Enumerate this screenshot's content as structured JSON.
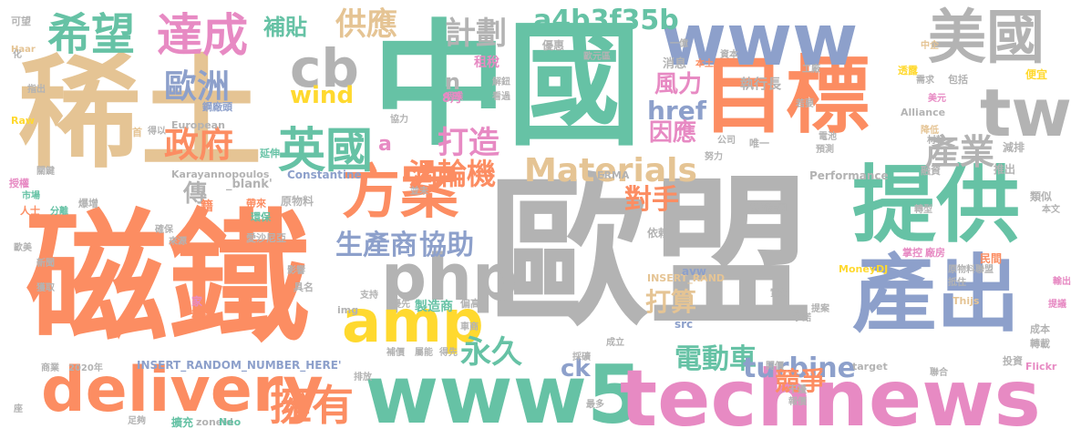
{
  "words": [
    {
      "text": "歐盟",
      "color": "#b3b3b3"
    },
    {
      "text": "磁鐵",
      "color": "#fc8d62"
    },
    {
      "text": "稀土",
      "color": "#e5c494"
    },
    {
      "text": "中國",
      "color": "#66c2a5"
    },
    {
      "text": "目標",
      "color": "#fc8d62"
    },
    {
      "text": "www5",
      "color": "#66c2a5"
    },
    {
      "text": "technews",
      "color": "#e78ac3"
    },
    {
      "text": "www",
      "color": "#8da0cb"
    },
    {
      "text": "提供",
      "color": "#66c2a5"
    },
    {
      "text": "產出",
      "color": "#8da0cb"
    },
    {
      "text": "tw",
      "color": "#b3b3b3"
    },
    {
      "text": "美國",
      "color": "#b3b3b3"
    },
    {
      "text": "delivery",
      "color": "#fc8d62"
    },
    {
      "text": "php",
      "color": "#b3b3b3"
    },
    {
      "text": "amp",
      "color": "#ffd92f"
    },
    {
      "text": "cb",
      "color": "#b3b3b3"
    },
    {
      "text": "方案",
      "color": "#fc8d62"
    },
    {
      "text": "希望",
      "color": "#66c2a5"
    },
    {
      "text": "達成",
      "color": "#e78ac3"
    },
    {
      "text": "英國",
      "color": "#66c2a5"
    },
    {
      "text": "擁有",
      "color": "#fc8d62"
    },
    {
      "text": "政府",
      "color": "#fc8d62"
    },
    {
      "text": "歐洲",
      "color": "#8da0cb"
    },
    {
      "text": "Materials",
      "color": "#e5c494"
    },
    {
      "text": "a4b3f35b",
      "color": "#66c2a5"
    },
    {
      "text": "產業",
      "color": "#b3b3b3"
    },
    {
      "text": "打造",
      "color": "#e78ac3"
    },
    {
      "text": "電動車",
      "color": "#66c2a5"
    },
    {
      "text": "永久",
      "color": "#66c2a5"
    },
    {
      "text": "渦輪機",
      "color": "#fc8d62"
    },
    {
      "text": "生產商",
      "color": "#8da0cb"
    },
    {
      "text": "協助",
      "color": "#8da0cb"
    },
    {
      "text": "計劃",
      "color": "#b3b3b3"
    },
    {
      "text": "供應",
      "color": "#e5c494"
    },
    {
      "text": "wind",
      "color": "#ffd92f"
    },
    {
      "text": "href",
      "color": "#8da0cb"
    },
    {
      "text": "turbine",
      "color": "#8da0cb"
    },
    {
      "text": "競爭",
      "color": "#fc8d62"
    },
    {
      "text": "對手",
      "color": "#fc8d62"
    },
    {
      "text": "風力",
      "color": "#e78ac3"
    },
    {
      "text": "因應",
      "color": "#e78ac3"
    },
    {
      "text": "打算",
      "color": "#e5c494"
    },
    {
      "text": "補貼",
      "color": "#66c2a5"
    },
    {
      "text": "傳",
      "color": "#b3b3b3"
    },
    {
      "text": "ck",
      "color": "#8da0cb"
    },
    {
      "text": "n",
      "color": "#b3b3b3"
    },
    {
      "text": "a",
      "color": "#e78ac3"
    },
    {
      "text": "租稅",
      "color": "#e78ac3"
    },
    {
      "text": "8月",
      "color": "#e78ac3"
    },
    {
      "text": "執行長",
      "color": "#b3b3b3"
    },
    {
      "text": "消息",
      "color": "#b3b3b3"
    },
    {
      "text": "INSERT_RANDOM_NUMBER_HERE'",
      "color": "#8da0cb"
    },
    {
      "text": "_blank'",
      "color": "#b3b3b3"
    },
    {
      "text": "Karayannopoulos",
      "color": "#b3b3b3"
    },
    {
      "text": "Constantine",
      "color": "#8da0cb"
    },
    {
      "text": "Performance",
      "color": "#b3b3b3"
    },
    {
      "text": "European",
      "color": "#b3b3b3"
    },
    {
      "text": "Alliance",
      "color": "#b3b3b3"
    },
    {
      "text": "MoneyDJ",
      "color": "#ffd92f"
    },
    {
      "text": "INSERT_RAND",
      "color": "#e5c494"
    },
    {
      "text": "zoneid",
      "color": "#b3b3b3"
    },
    {
      "text": "Neo",
      "color": "#66c2a5"
    },
    {
      "text": "target",
      "color": "#b3b3b3"
    },
    {
      "text": "Flickr",
      "color": "#e78ac3"
    },
    {
      "text": "Thijs",
      "color": "#e5c494"
    },
    {
      "text": "avw",
      "color": "#8da0cb"
    },
    {
      "text": "src",
      "color": "#8da0cb"
    },
    {
      "text": "img",
      "color": "#b3b3b3"
    },
    {
      "text": "Raw",
      "color": "#ffd92f"
    },
    {
      "text": "Haar",
      "color": "#e5c494"
    },
    {
      "text": "ERMA",
      "color": "#b3b3b3"
    },
    {
      "text": "2020年",
      "color": "#b3b3b3"
    },
    {
      "text": "製造商",
      "color": "#66c2a5"
    },
    {
      "text": "原物料",
      "color": "#b3b3b3"
    },
    {
      "text": "鋼廠頭",
      "color": "#8da0cb"
    },
    {
      "text": "壟斷集團",
      "color": "#b3b3b3"
    },
    {
      "text": "原物料聯盟",
      "color": "#b3b3b3"
    },
    {
      "text": "掌控",
      "color": "#e78ac3"
    },
    {
      "text": "廠房",
      "color": "#e78ac3"
    },
    {
      "text": "民間",
      "color": "#fc8d62"
    },
    {
      "text": "類似",
      "color": "#b3b3b3"
    },
    {
      "text": "推出",
      "color": "#b3b3b3"
    },
    {
      "text": "減排",
      "color": "#b3b3b3"
    },
    {
      "text": "融資",
      "color": "#b3b3b3"
    },
    {
      "text": "降低",
      "color": "#e5c494"
    },
    {
      "text": "電池",
      "color": "#b3b3b3"
    },
    {
      "text": "唯一",
      "color": "#b3b3b3"
    },
    {
      "text": "公司",
      "color": "#b3b3b3"
    },
    {
      "text": "成本",
      "color": "#b3b3b3"
    },
    {
      "text": "投資",
      "color": "#b3b3b3"
    },
    {
      "text": "轉載",
      "color": "#b3b3b3"
    },
    {
      "text": "提議",
      "color": "#e78ac3"
    },
    {
      "text": "輸出",
      "color": "#e78ac3"
    },
    {
      "text": "便宜",
      "color": "#ffd92f"
    },
    {
      "text": "包括",
      "color": "#b3b3b3"
    },
    {
      "text": "美元",
      "color": "#e78ac3"
    },
    {
      "text": "若要",
      "color": "#b3b3b3"
    },
    {
      "text": "透露",
      "color": "#ffd92f"
    },
    {
      "text": "需求",
      "color": "#b3b3b3"
    },
    {
      "text": "工廠",
      "color": "#b3b3b3"
    },
    {
      "text": "優惠",
      "color": "#b3b3b3"
    },
    {
      "text": "一億",
      "color": "#b3b3b3"
    },
    {
      "text": "本土",
      "color": "#fc8d62"
    },
    {
      "text": "資本",
      "color": "#b3b3b3"
    },
    {
      "text": "歐元區",
      "color": "#b3b3b3"
    },
    {
      "text": "延伸",
      "color": "#66c2a5"
    },
    {
      "text": "並未",
      "color": "#b3b3b3"
    },
    {
      "text": "首",
      "color": "#e5c494"
    },
    {
      "text": "得以",
      "color": "#b3b3b3"
    },
    {
      "text": "指出",
      "color": "#b3b3b3"
    },
    {
      "text": "可望",
      "color": "#b3b3b3"
    },
    {
      "text": "化",
      "color": "#b3b3b3"
    },
    {
      "text": "授權",
      "color": "#e78ac3"
    },
    {
      "text": "關鍵",
      "color": "#b3b3b3"
    },
    {
      "text": "市場",
      "color": "#66c2a5"
    },
    {
      "text": "爆增",
      "color": "#b3b3b3"
    },
    {
      "text": "人士",
      "color": "#fc8d62"
    },
    {
      "text": "分離",
      "color": "#66c2a5"
    },
    {
      "text": "歐美",
      "color": "#b3b3b3"
    },
    {
      "text": "新聞",
      "color": "#b3b3b3"
    },
    {
      "text": "獲取",
      "color": "#b3b3b3"
    },
    {
      "text": "商業",
      "color": "#b3b3b3"
    },
    {
      "text": "座",
      "color": "#b3b3b3"
    },
    {
      "text": "籍",
      "color": "#fc8d62"
    },
    {
      "text": "帶來",
      "color": "#fc8d62"
    },
    {
      "text": "環保",
      "color": "#66c2a5"
    },
    {
      "text": "愛沙尼亞",
      "color": "#b3b3b3"
    },
    {
      "text": "確保",
      "color": "#b3b3b3"
    },
    {
      "text": "來源",
      "color": "#b3b3b3"
    },
    {
      "text": "稍早",
      "color": "#fc8d62"
    },
    {
      "text": "家",
      "color": "#e78ac3"
    },
    {
      "text": "具名",
      "color": "#b3b3b3"
    },
    {
      "text": "影響",
      "color": "#b3b3b3"
    },
    {
      "text": "支持",
      "color": "#b3b3b3"
    },
    {
      "text": "優先",
      "color": "#b3b3b3"
    },
    {
      "text": "偏高",
      "color": "#b3b3b3"
    },
    {
      "text": "排放",
      "color": "#b3b3b3"
    },
    {
      "text": "足夠",
      "color": "#b3b3b3"
    },
    {
      "text": "擴充",
      "color": "#66c2a5"
    },
    {
      "text": "最多",
      "color": "#b3b3b3"
    },
    {
      "text": "採礦",
      "color": "#b3b3b3"
    },
    {
      "text": "開價",
      "color": "#b3b3b3"
    },
    {
      "text": "報價",
      "color": "#b3b3b3"
    },
    {
      "text": "干擾",
      "color": "#b3b3b3"
    },
    {
      "text": "聯合",
      "color": "#b3b3b3"
    },
    {
      "text": "成立",
      "color": "#b3b3b3"
    },
    {
      "text": "承諾",
      "color": "#b3b3b3"
    },
    {
      "text": "提案",
      "color": "#b3b3b3"
    },
    {
      "text": "實心",
      "color": "#b3b3b3"
    },
    {
      "text": "轉型",
      "color": "#b3b3b3"
    },
    {
      "text": "抵住",
      "color": "#b3b3b3"
    },
    {
      "text": "預測",
      "color": "#b3b3b3"
    },
    {
      "text": "材料",
      "color": "#b3b3b3"
    },
    {
      "text": "本文",
      "color": "#b3b3b3"
    },
    {
      "text": "依賴",
      "color": "#b3b3b3"
    },
    {
      "text": "中企",
      "color": "#e5c494"
    },
    {
      "text": "咽喉",
      "color": "#e78ac3"
    },
    {
      "text": "看過",
      "color": "#b3b3b3"
    },
    {
      "text": "解鈕",
      "color": "#b3b3b3"
    },
    {
      "text": "協力",
      "color": "#b3b3b3"
    },
    {
      "text": "努力",
      "color": "#b3b3b3"
    },
    {
      "text": "補價",
      "color": "#b3b3b3"
    },
    {
      "text": "屬能",
      "color": "#b3b3b3"
    },
    {
      "text": "得先",
      "color": "#b3b3b3"
    },
    {
      "text": "車商",
      "color": "#b3b3b3"
    }
  ]
}
